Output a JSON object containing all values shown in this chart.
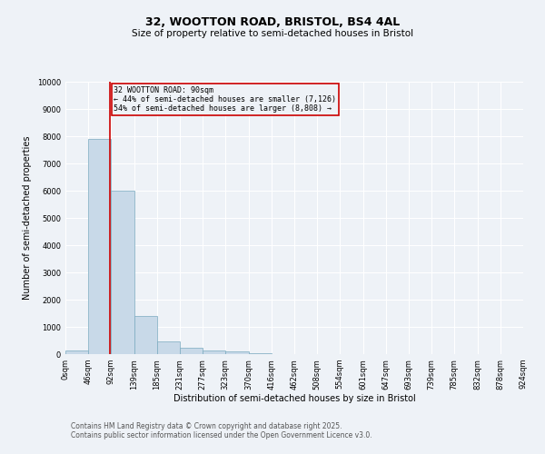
{
  "title": "32, WOOTTON ROAD, BRISTOL, BS4 4AL",
  "subtitle": "Size of property relative to semi-detached houses in Bristol",
  "xlabel": "Distribution of semi-detached houses by size in Bristol",
  "ylabel": "Number of semi-detached properties",
  "bin_edges": [
    0,
    46,
    92,
    139,
    185,
    231,
    277,
    323,
    370,
    416,
    462,
    508,
    554,
    601,
    647,
    693,
    739,
    785,
    832,
    878,
    924
  ],
  "bar_heights": [
    150,
    7900,
    6000,
    1400,
    480,
    230,
    130,
    90,
    50,
    10,
    5,
    3,
    2,
    1,
    1,
    0,
    0,
    0,
    0,
    0
  ],
  "bar_color": "#c8d9e8",
  "bar_edge_color": "#7aaabf",
  "property_value": 90,
  "property_line_color": "#cc0000",
  "annotation_text": "32 WOOTTON ROAD: 90sqm\n← 44% of semi-detached houses are smaller (7,126)\n54% of semi-detached houses are larger (8,808) →",
  "annotation_box_color": "#cc0000",
  "annotation_text_color": "#000000",
  "ylim": [
    0,
    10000
  ],
  "yticks": [
    0,
    1000,
    2000,
    3000,
    4000,
    5000,
    6000,
    7000,
    8000,
    9000,
    10000
  ],
  "tick_labels": [
    "0sqm",
    "46sqm",
    "92sqm",
    "139sqm",
    "185sqm",
    "231sqm",
    "277sqm",
    "323sqm",
    "370sqm",
    "416sqm",
    "462sqm",
    "508sqm",
    "554sqm",
    "601sqm",
    "647sqm",
    "693sqm",
    "739sqm",
    "785sqm",
    "832sqm",
    "878sqm",
    "924sqm"
  ],
  "footer_line1": "Contains HM Land Registry data © Crown copyright and database right 2025.",
  "footer_line2": "Contains public sector information licensed under the Open Government Licence v3.0.",
  "background_color": "#eef2f7",
  "grid_color": "#ffffff",
  "title_fontsize": 9,
  "subtitle_fontsize": 7.5,
  "axis_label_fontsize": 7,
  "tick_fontsize": 6,
  "annotation_fontsize": 6,
  "footer_fontsize": 5.5
}
